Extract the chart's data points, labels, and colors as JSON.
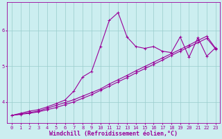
{
  "xlabel": "Windchill (Refroidissement éolien,°C)",
  "bg_color": "#cceef0",
  "line_color": "#990099",
  "grid_color": "#99cccc",
  "xlim": [
    -0.5,
    23.5
  ],
  "ylim": [
    3.4,
    6.8
  ],
  "xticks": [
    0,
    1,
    2,
    3,
    4,
    5,
    6,
    7,
    8,
    9,
    10,
    11,
    12,
    13,
    14,
    15,
    16,
    17,
    18,
    19,
    20,
    21,
    22,
    23
  ],
  "yticks": [
    4,
    5,
    6
  ],
  "line1_x": [
    0,
    1,
    2,
    3,
    4,
    5,
    6,
    7,
    8,
    9,
    10,
    11,
    12,
    13,
    14,
    15,
    16,
    17,
    18,
    19,
    20,
    21,
    22,
    23
  ],
  "line1_y": [
    3.62,
    3.66,
    3.7,
    3.74,
    3.82,
    3.9,
    3.98,
    4.06,
    4.16,
    4.26,
    4.36,
    4.5,
    4.62,
    4.74,
    4.87,
    4.99,
    5.11,
    5.23,
    5.35,
    5.47,
    5.59,
    5.72,
    5.84,
    5.5
  ],
  "line2_x": [
    0,
    1,
    2,
    3,
    4,
    5,
    6,
    7,
    8,
    9,
    10,
    11,
    12,
    13,
    14,
    15,
    16,
    17,
    18,
    19,
    20,
    21,
    22,
    23
  ],
  "line2_y": [
    3.62,
    3.65,
    3.68,
    3.72,
    3.78,
    3.84,
    3.92,
    4.0,
    4.1,
    4.2,
    4.32,
    4.44,
    4.56,
    4.68,
    4.81,
    4.93,
    5.05,
    5.17,
    5.3,
    5.42,
    5.54,
    5.66,
    5.78,
    5.48
  ],
  "line3_x": [
    0,
    1,
    2,
    3,
    4,
    5,
    6,
    7,
    8,
    9,
    10,
    11,
    12,
    13,
    14,
    15,
    16,
    17,
    18,
    19,
    20,
    21,
    22,
    23
  ],
  "line3_y": [
    3.62,
    3.68,
    3.74,
    3.78,
    3.86,
    3.95,
    4.05,
    4.3,
    4.7,
    4.85,
    5.55,
    6.28,
    6.5,
    5.82,
    5.55,
    5.5,
    5.55,
    5.42,
    5.38,
    5.82,
    5.25,
    5.8,
    5.28,
    5.52
  ],
  "marker_size": 2.5,
  "linewidth": 0.8,
  "tick_fontsize": 5.0,
  "xlabel_fontsize": 6.0
}
